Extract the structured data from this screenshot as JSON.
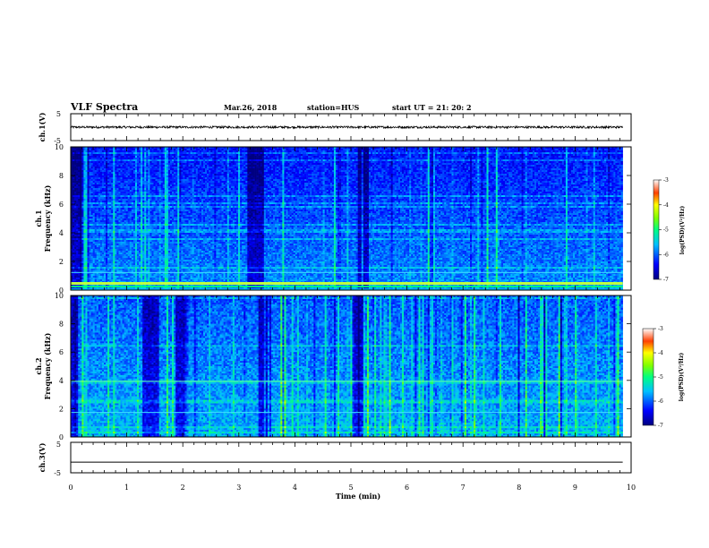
{
  "header": {
    "title": "VLF Spectra",
    "date": "Mar.26, 2018",
    "station": "station=HUS",
    "start": "start  UT =   21: 20: 2"
  },
  "chart_data": [
    {
      "type": "line",
      "panel": "ch1-waveform",
      "ylabel": "ch.1(V)",
      "ylim": [
        -5,
        5
      ],
      "yticks": [
        "5",
        "-5"
      ],
      "description_values": {
        "baseline_V": 0.0,
        "noise_amplitude_V": 0.4
      }
    },
    {
      "type": "heatmap",
      "panel": "ch1-spectrogram",
      "ylabel": "ch.1\nFrequency (kHz)",
      "ylim": [
        0,
        10
      ],
      "yticks": [
        "0",
        "2",
        "4",
        "6",
        "8",
        "10"
      ],
      "xlim": [
        0,
        10
      ],
      "colorbar": {
        "label": "log(PSD)(V²/Hz)",
        "range": [
          -7,
          -3
        ],
        "ticks": [
          "-3",
          "-4",
          "-5",
          "-6",
          "-7"
        ]
      }
    },
    {
      "type": "heatmap",
      "panel": "ch2-spectrogram",
      "ylabel": "ch.2\nFrequency (kHz)",
      "ylim": [
        0,
        10
      ],
      "yticks": [
        "0",
        "2",
        "4",
        "6",
        "8",
        "10"
      ],
      "xlim": [
        0,
        10
      ],
      "colorbar": {
        "label": "log(PSD)(V²/Hz)",
        "range": [
          -7,
          -3
        ],
        "ticks": [
          "-3",
          "-4",
          "-5",
          "-6",
          "-7"
        ]
      }
    },
    {
      "type": "line",
      "panel": "ch3-waveform",
      "ylabel": "ch.3(V)",
      "ylim": [
        -5,
        5
      ],
      "yticks": [
        "5",
        "-5"
      ],
      "description_values": {
        "baseline_V": -1.5
      }
    }
  ],
  "xaxis": {
    "label": "Time (min)",
    "ticks": [
      "0",
      "1",
      "2",
      "3",
      "4",
      "5",
      "6",
      "7",
      "8",
      "9",
      "10"
    ],
    "range": [
      0,
      10
    ],
    "data_end_min": 9.85
  },
  "ch1_ylabel_top": "ch.1",
  "ch1_ylabel_bottom": "Frequency (kHz)",
  "ch2_ylabel_top": "ch.2",
  "ch2_ylabel_bottom": "Frequency (kHz)",
  "cb_label": "log(PSD)(V²/Hz)"
}
